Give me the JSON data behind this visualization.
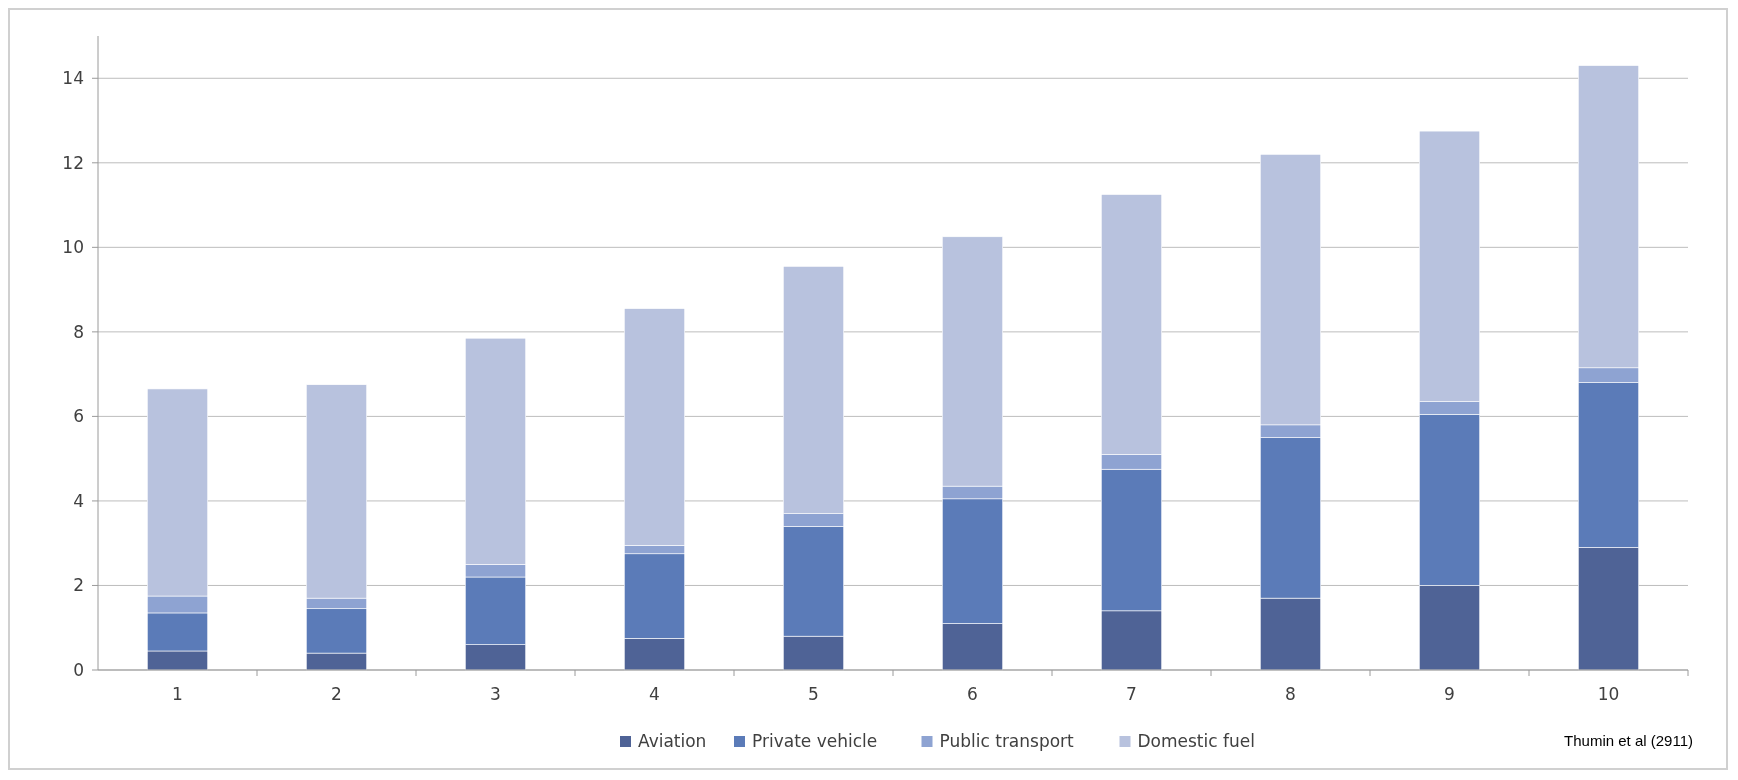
{
  "chart_data": {
    "type": "bar",
    "stacked": true,
    "categories": [
      "1",
      "2",
      "3",
      "4",
      "5",
      "6",
      "7",
      "8",
      "9",
      "10"
    ],
    "series": [
      {
        "name": "Aviation",
        "color": "#4f6396",
        "values": [
          0.45,
          0.4,
          0.6,
          0.75,
          0.8,
          1.1,
          1.4,
          1.7,
          2.0,
          2.9
        ]
      },
      {
        "name": "Private vehicle",
        "color": "#5b7bb8",
        "values": [
          0.9,
          1.05,
          1.6,
          2.0,
          2.6,
          2.95,
          3.35,
          3.8,
          4.05,
          3.9
        ]
      },
      {
        "name": "Public transport",
        "color": "#8ea3d2",
        "values": [
          0.4,
          0.25,
          0.3,
          0.2,
          0.3,
          0.3,
          0.35,
          0.3,
          0.3,
          0.35
        ]
      },
      {
        "name": "Domestic fuel",
        "color": "#b8c2de",
        "values": [
          4.9,
          5.05,
          5.35,
          5.6,
          5.85,
          5.9,
          6.15,
          6.4,
          6.4,
          7.15
        ]
      }
    ],
    "ylim": [
      0,
      15
    ],
    "yticks": [
      0,
      2,
      4,
      6,
      8,
      10,
      12,
      14
    ],
    "grid": "y",
    "legend": "bottom",
    "annotations": [
      "Thumin et al (2911)"
    ]
  }
}
